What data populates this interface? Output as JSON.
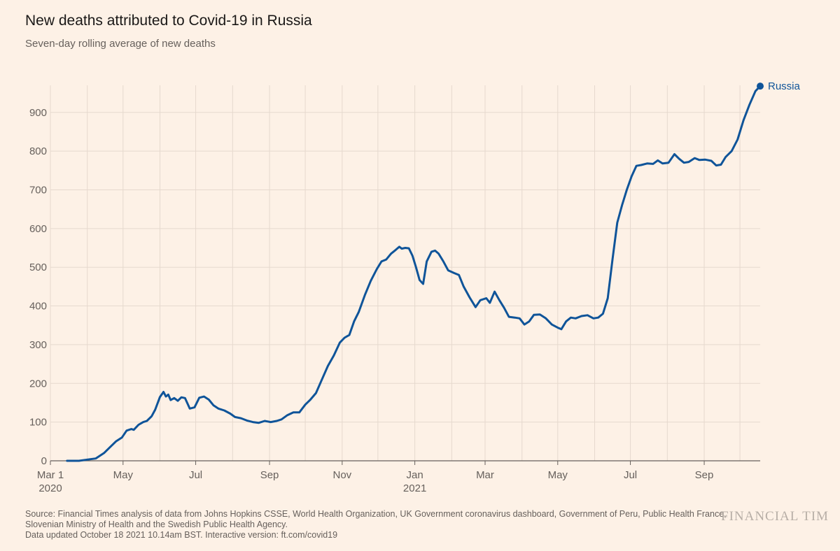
{
  "header": {
    "title": "New deaths attributed to Covid-19 in Russia",
    "subtitle": "Seven-day rolling average of new deaths"
  },
  "footer": {
    "source_line1": "Source: Financial Times analysis of data from Johns Hopkins CSSE, World Health Organization, UK Government coronavirus dashboard, Government of Peru, Public Health France,",
    "source_line2": "Slovenian Ministry of Health and the Swedish Public Health Agency.",
    "source_line3": "Data updated October 18 2021 10.14am BST. Interactive version: ft.com/covid19",
    "brand": "FINANCIAL TIM"
  },
  "colors": {
    "background": "#fdf1e6",
    "line": "#0f5499",
    "grid": "#e6d9ce",
    "axis": "#66605c"
  },
  "chart_data": {
    "type": "line",
    "title": "New deaths attributed to Covid-19 in Russia",
    "subtitle": "Seven-day rolling average of new deaths",
    "xlabel": "",
    "ylabel": "",
    "x_range": [
      "2020-03-01",
      "2021-10-18"
    ],
    "ylim": [
      0,
      970
    ],
    "y_ticks": [
      0,
      100,
      200,
      300,
      400,
      500,
      600,
      700,
      800,
      900
    ],
    "x_ticks": [
      {
        "date": "2020-03-01",
        "label": "Mar 1",
        "sublabel": "2020"
      },
      {
        "date": "2020-05-01",
        "label": "May",
        "sublabel": ""
      },
      {
        "date": "2020-07-01",
        "label": "Jul",
        "sublabel": ""
      },
      {
        "date": "2020-09-01",
        "label": "Sep",
        "sublabel": ""
      },
      {
        "date": "2020-11-01",
        "label": "Nov",
        "sublabel": ""
      },
      {
        "date": "2021-01-01",
        "label": "Jan",
        "sublabel": "2021"
      },
      {
        "date": "2021-03-01",
        "label": "Mar",
        "sublabel": ""
      },
      {
        "date": "2021-05-01",
        "label": "May",
        "sublabel": ""
      },
      {
        "date": "2021-07-01",
        "label": "Jul",
        "sublabel": ""
      },
      {
        "date": "2021-09-01",
        "label": "Sep",
        "sublabel": ""
      }
    ],
    "grid": true,
    "series": [
      {
        "name": "Russia",
        "color": "#0f5499",
        "points": [
          [
            "2020-03-15",
            0
          ],
          [
            "2020-03-25",
            0
          ],
          [
            "2020-04-01",
            3
          ],
          [
            "2020-04-08",
            6
          ],
          [
            "2020-04-15",
            20
          ],
          [
            "2020-04-20",
            35
          ],
          [
            "2020-04-25",
            50
          ],
          [
            "2020-04-30",
            60
          ],
          [
            "2020-05-04",
            78
          ],
          [
            "2020-05-08",
            82
          ],
          [
            "2020-05-10",
            80
          ],
          [
            "2020-05-14",
            93
          ],
          [
            "2020-05-18",
            100
          ],
          [
            "2020-05-21",
            103
          ],
          [
            "2020-05-25",
            115
          ],
          [
            "2020-05-28",
            132
          ],
          [
            "2020-06-01",
            165
          ],
          [
            "2020-06-04",
            178
          ],
          [
            "2020-06-06",
            166
          ],
          [
            "2020-06-08",
            171
          ],
          [
            "2020-06-10",
            157
          ],
          [
            "2020-06-13",
            162
          ],
          [
            "2020-06-16",
            155
          ],
          [
            "2020-06-19",
            164
          ],
          [
            "2020-06-22",
            162
          ],
          [
            "2020-06-26",
            135
          ],
          [
            "2020-06-30",
            138
          ],
          [
            "2020-07-04",
            163
          ],
          [
            "2020-07-08",
            166
          ],
          [
            "2020-07-12",
            158
          ],
          [
            "2020-07-16",
            143
          ],
          [
            "2020-07-20",
            135
          ],
          [
            "2020-07-25",
            130
          ],
          [
            "2020-07-30",
            122
          ],
          [
            "2020-08-03",
            113
          ],
          [
            "2020-08-08",
            110
          ],
          [
            "2020-08-13",
            104
          ],
          [
            "2020-08-18",
            100
          ],
          [
            "2020-08-23",
            98
          ],
          [
            "2020-08-28",
            103
          ],
          [
            "2020-09-02",
            100
          ],
          [
            "2020-09-07",
            103
          ],
          [
            "2020-09-11",
            107
          ],
          [
            "2020-09-16",
            118
          ],
          [
            "2020-09-21",
            125
          ],
          [
            "2020-09-26",
            125
          ],
          [
            "2020-10-01",
            145
          ],
          [
            "2020-10-05",
            157
          ],
          [
            "2020-10-10",
            175
          ],
          [
            "2020-10-15",
            210
          ],
          [
            "2020-10-20",
            245
          ],
          [
            "2020-10-25",
            272
          ],
          [
            "2020-10-30",
            305
          ],
          [
            "2020-11-03",
            318
          ],
          [
            "2020-11-07",
            325
          ],
          [
            "2020-11-11",
            360
          ],
          [
            "2020-11-15",
            385
          ],
          [
            "2020-11-20",
            428
          ],
          [
            "2020-11-25",
            465
          ],
          [
            "2020-11-30",
            495
          ],
          [
            "2020-12-04",
            515
          ],
          [
            "2020-12-08",
            520
          ],
          [
            "2020-12-12",
            535
          ],
          [
            "2020-12-16",
            545
          ],
          [
            "2020-12-19",
            553
          ],
          [
            "2020-12-21",
            548
          ],
          [
            "2020-12-24",
            550
          ],
          [
            "2020-12-27",
            549
          ],
          [
            "2020-12-30",
            530
          ],
          [
            "2021-01-02",
            500
          ],
          [
            "2021-01-05",
            467
          ],
          [
            "2021-01-08",
            457
          ],
          [
            "2021-01-11",
            515
          ],
          [
            "2021-01-15",
            540
          ],
          [
            "2021-01-18",
            543
          ],
          [
            "2021-01-21",
            535
          ],
          [
            "2021-01-25",
            515
          ],
          [
            "2021-01-29",
            492
          ],
          [
            "2021-02-03",
            485
          ],
          [
            "2021-02-07",
            480
          ],
          [
            "2021-02-11",
            450
          ],
          [
            "2021-02-16",
            422
          ],
          [
            "2021-02-21",
            397
          ],
          [
            "2021-02-25",
            415
          ],
          [
            "2021-03-02",
            420
          ],
          [
            "2021-03-05",
            408
          ],
          [
            "2021-03-09",
            437
          ],
          [
            "2021-03-13",
            415
          ],
          [
            "2021-03-17",
            395
          ],
          [
            "2021-03-21",
            372
          ],
          [
            "2021-03-26",
            370
          ],
          [
            "2021-03-30",
            368
          ],
          [
            "2021-04-03",
            352
          ],
          [
            "2021-04-07",
            360
          ],
          [
            "2021-04-11",
            377
          ],
          [
            "2021-04-16",
            378
          ],
          [
            "2021-04-21",
            368
          ],
          [
            "2021-04-26",
            352
          ],
          [
            "2021-05-01",
            344
          ],
          [
            "2021-05-04",
            340
          ],
          [
            "2021-05-08",
            360
          ],
          [
            "2021-05-12",
            370
          ],
          [
            "2021-05-16",
            368
          ],
          [
            "2021-05-21",
            374
          ],
          [
            "2021-05-26",
            376
          ],
          [
            "2021-05-31",
            368
          ],
          [
            "2021-06-04",
            370
          ],
          [
            "2021-06-08",
            380
          ],
          [
            "2021-06-12",
            420
          ],
          [
            "2021-06-16",
            520
          ],
          [
            "2021-06-20",
            615
          ],
          [
            "2021-06-24",
            660
          ],
          [
            "2021-06-28",
            700
          ],
          [
            "2021-07-02",
            735
          ],
          [
            "2021-07-06",
            762
          ],
          [
            "2021-07-10",
            764
          ],
          [
            "2021-07-15",
            768
          ],
          [
            "2021-07-20",
            767
          ],
          [
            "2021-07-24",
            776
          ],
          [
            "2021-07-28",
            768
          ],
          [
            "2021-08-02",
            770
          ],
          [
            "2021-08-07",
            792
          ],
          [
            "2021-08-11",
            780
          ],
          [
            "2021-08-15",
            770
          ],
          [
            "2021-08-19",
            772
          ],
          [
            "2021-08-24",
            782
          ],
          [
            "2021-08-28",
            777
          ],
          [
            "2021-09-02",
            778
          ],
          [
            "2021-09-07",
            775
          ],
          [
            "2021-09-11",
            763
          ],
          [
            "2021-09-15",
            765
          ],
          [
            "2021-09-19",
            785
          ],
          [
            "2021-09-24",
            800
          ],
          [
            "2021-09-29",
            830
          ],
          [
            "2021-10-04",
            880
          ],
          [
            "2021-10-09",
            920
          ],
          [
            "2021-10-14",
            955
          ],
          [
            "2021-10-18",
            968
          ]
        ]
      }
    ],
    "end_label": "Russia"
  }
}
